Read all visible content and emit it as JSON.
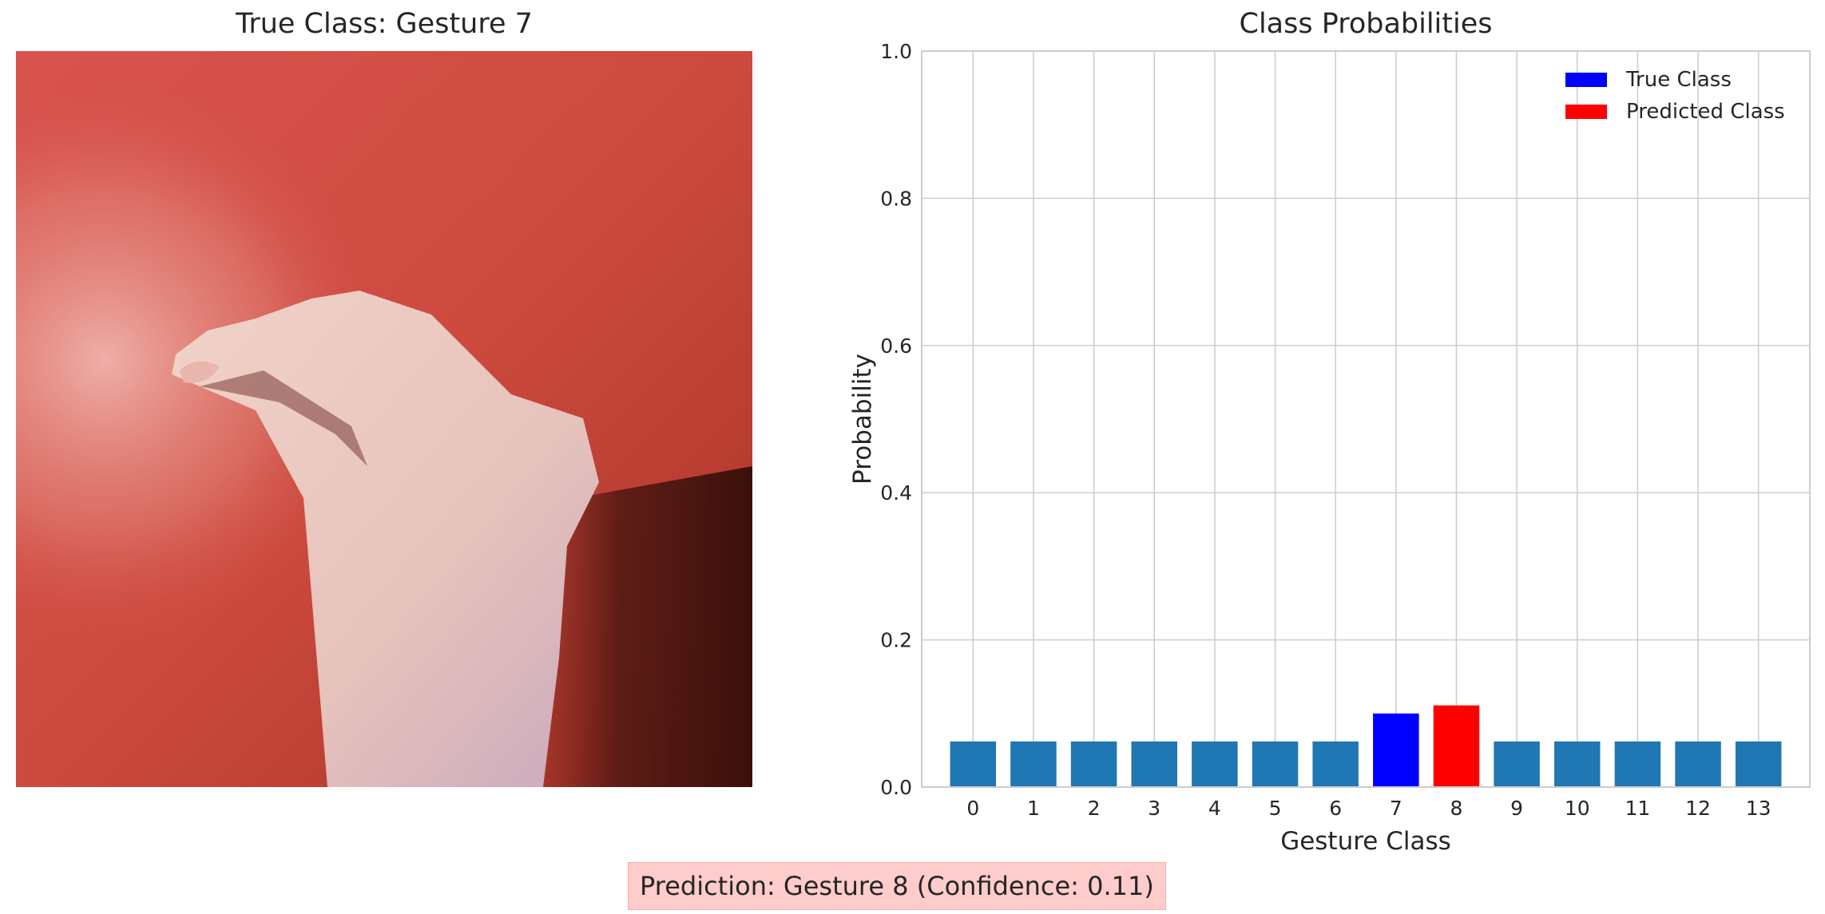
{
  "image_panel": {
    "title": "True Class: Gesture 7"
  },
  "chart_data": {
    "type": "bar",
    "title": "Class Probabilities",
    "xlabel": "Gesture Class",
    "ylabel": "Probability",
    "ylim": [
      0,
      1.0
    ],
    "yticks": [
      "0.0",
      "0.2",
      "0.4",
      "0.6",
      "0.8",
      "1.0"
    ],
    "categories": [
      "0",
      "1",
      "2",
      "3",
      "4",
      "5",
      "6",
      "7",
      "8",
      "9",
      "10",
      "11",
      "12",
      "13"
    ],
    "values": [
      0.062,
      0.062,
      0.062,
      0.062,
      0.062,
      0.062,
      0.062,
      0.1,
      0.111,
      0.062,
      0.062,
      0.062,
      0.062,
      0.062
    ],
    "true_class_index": 7,
    "predicted_class_index": 8,
    "grid": true,
    "legend_position": "top-right",
    "legend": [
      {
        "label": "True Class",
        "color": "#0000ff"
      },
      {
        "label": "Predicted Class",
        "color": "#ff0000"
      }
    ],
    "colors": {
      "default": "#1f77b4",
      "true": "#0000ff",
      "predicted": "#ff0000"
    }
  },
  "prediction_text": "Prediction: Gesture 8 (Confidence: 0.11)"
}
